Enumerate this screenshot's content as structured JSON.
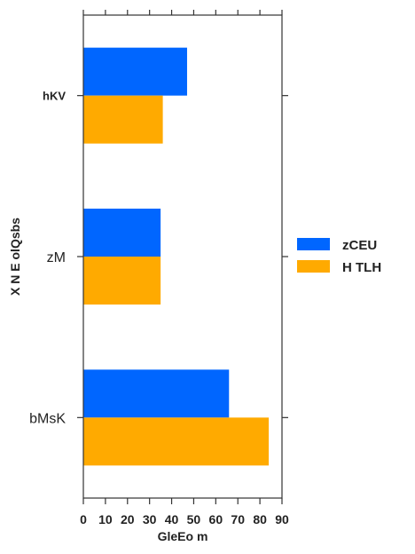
{
  "chart_data": {
    "type": "bar",
    "orientation": "horizontal",
    "categories": [
      "hKV",
      "zM",
      "bMsK"
    ],
    "category_label_bold": [
      true,
      false,
      false
    ],
    "series": [
      {
        "name": "zCEU",
        "values": [
          47,
          35,
          66
        ],
        "color": "#0066ff"
      },
      {
        "name": "H TLH",
        "values": [
          36,
          35,
          84
        ],
        "color": "#ffaa00"
      }
    ],
    "xlabel": "GleEo m",
    "ylabel": "X N  E olQsbs",
    "xlim": [
      0,
      90
    ],
    "xticks": [
      0,
      10,
      20,
      30,
      40,
      50,
      60,
      70,
      80,
      90
    ],
    "grid": false,
    "legend_position": "right"
  }
}
